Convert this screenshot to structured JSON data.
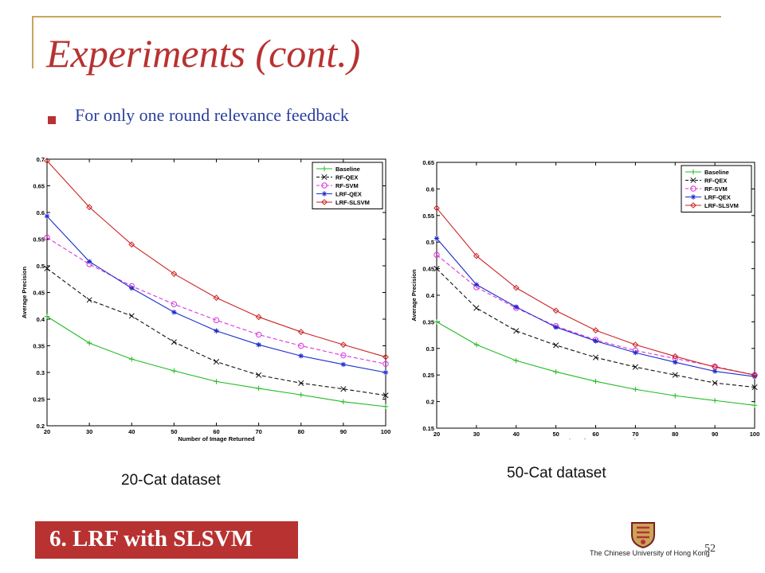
{
  "slide": {
    "title": "Experiments (cont.)",
    "bullet": "For only one round relevance feedback",
    "section_label": "6. LRF with SLSVM",
    "university": "The Chinese University of Hong Kong",
    "page_number": "52",
    "colors": {
      "accent": "#b83232",
      "bullet_text": "#2a3f9e",
      "frame": "#c9a55a"
    }
  },
  "chart_data": [
    {
      "type": "line",
      "caption": "20-Cat dataset",
      "xlabel": "Number of Image Returned",
      "ylabel": "Average Precision",
      "x": [
        20,
        30,
        40,
        50,
        60,
        70,
        80,
        90,
        100
      ],
      "xlim": [
        20,
        100
      ],
      "ylim": [
        0.2,
        0.7
      ],
      "xticks": [
        20,
        30,
        40,
        50,
        60,
        70,
        80,
        90,
        100
      ],
      "yticks": [
        0.2,
        0.25,
        0.3,
        0.35,
        0.4,
        0.45,
        0.5,
        0.55,
        0.6,
        0.65,
        0.7
      ],
      "legend_position": "top-right",
      "grid": false,
      "series": [
        {
          "name": "Baseline",
          "color": "#22bb22",
          "dash": "solid",
          "marker": "plus",
          "values": [
            0.405,
            0.355,
            0.325,
            0.303,
            0.283,
            0.27,
            0.258,
            0.245,
            0.236
          ]
        },
        {
          "name": "RF-QEX",
          "color": "#111111",
          "dash": "dashed",
          "marker": "x",
          "values": [
            0.495,
            0.436,
            0.406,
            0.357,
            0.32,
            0.295,
            0.28,
            0.269,
            0.257
          ]
        },
        {
          "name": "RF-SVM",
          "color": "#dd33dd",
          "dash": "dashed",
          "marker": "circle",
          "values": [
            0.553,
            0.503,
            0.462,
            0.428,
            0.398,
            0.371,
            0.35,
            0.332,
            0.316
          ]
        },
        {
          "name": "LRF-QEX",
          "color": "#1a2ecc",
          "dash": "solid",
          "marker": "star",
          "values": [
            0.593,
            0.508,
            0.458,
            0.413,
            0.378,
            0.352,
            0.331,
            0.315,
            0.3
          ]
        },
        {
          "name": "LRF-SLSVM",
          "color": "#cc2222",
          "dash": "solid",
          "marker": "diamond",
          "values": [
            0.697,
            0.61,
            0.54,
            0.485,
            0.44,
            0.404,
            0.376,
            0.352,
            0.329
          ]
        }
      ]
    },
    {
      "type": "line",
      "caption": "50-Cat dataset",
      "xlabel": "Number of Images Returned",
      "ylabel": "Average Precision",
      "x": [
        20,
        30,
        40,
        50,
        60,
        70,
        80,
        90,
        100
      ],
      "xlim": [
        20,
        100
      ],
      "ylim": [
        0.15,
        0.65
      ],
      "xticks": [
        20,
        30,
        40,
        50,
        60,
        70,
        80,
        90,
        100
      ],
      "yticks": [
        0.15,
        0.2,
        0.25,
        0.3,
        0.35,
        0.4,
        0.45,
        0.5,
        0.55,
        0.6,
        0.65
      ],
      "legend_position": "top-right",
      "grid": false,
      "series": [
        {
          "name": "Baseline",
          "color": "#22bb22",
          "dash": "solid",
          "marker": "plus",
          "values": [
            0.35,
            0.307,
            0.277,
            0.256,
            0.238,
            0.223,
            0.211,
            0.202,
            0.193
          ]
        },
        {
          "name": "RF-QEX",
          "color": "#111111",
          "dash": "dashed",
          "marker": "x",
          "values": [
            0.45,
            0.376,
            0.333,
            0.306,
            0.283,
            0.265,
            0.25,
            0.235,
            0.227
          ]
        },
        {
          "name": "RF-SVM",
          "color": "#dd33dd",
          "dash": "dashed",
          "marker": "circle",
          "values": [
            0.476,
            0.415,
            0.376,
            0.342,
            0.316,
            0.296,
            0.281,
            0.266,
            0.25
          ]
        },
        {
          "name": "LRF-QEX",
          "color": "#1a2ecc",
          "dash": "solid",
          "marker": "star",
          "values": [
            0.507,
            0.42,
            0.378,
            0.34,
            0.314,
            0.292,
            0.274,
            0.257,
            0.247
          ]
        },
        {
          "name": "LRF-SLSVM",
          "color": "#cc2222",
          "dash": "solid",
          "marker": "diamond",
          "values": [
            0.564,
            0.474,
            0.414,
            0.371,
            0.334,
            0.307,
            0.285,
            0.265,
            0.25
          ]
        }
      ]
    }
  ]
}
